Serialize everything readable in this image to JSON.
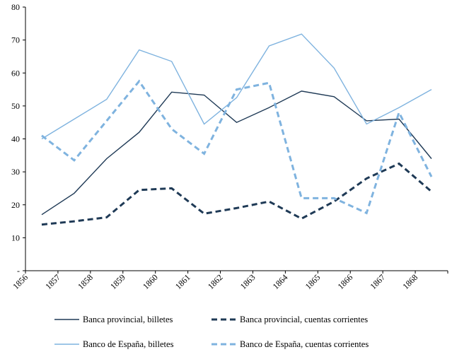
{
  "chart_data": {
    "type": "line",
    "x": [
      "1856",
      "1857",
      "1858",
      "1859",
      "1860",
      "1861",
      "1862",
      "1863",
      "1864",
      "1865",
      "1866",
      "1867",
      "1868"
    ],
    "ylim": [
      0,
      80
    ],
    "yticks": [
      0,
      10,
      20,
      30,
      40,
      50,
      60,
      70,
      80
    ],
    "ytick_labels": [
      "-",
      "10",
      "20",
      "30",
      "40",
      "50",
      "60",
      "70",
      "80"
    ],
    "grid": false,
    "legend_position": "bottom",
    "series": [
      {
        "name": "Banca provincial, billetes",
        "color": "#1f3a56",
        "dash": "solid",
        "values": [
          17,
          23.5,
          34,
          42,
          54.2,
          53.3,
          45,
          49.5,
          54.5,
          52.8,
          45.5,
          46,
          34
        ]
      },
      {
        "name": "Banca provincial, cuentas corrientes",
        "color": "#1f3a56",
        "dash": "dashed",
        "values": [
          14,
          15,
          16.2,
          24.5,
          25,
          17.3,
          19,
          21,
          15.8,
          21,
          28,
          32.5,
          24
        ]
      },
      {
        "name": "Banco de España, billetes",
        "color": "#7fb3df",
        "dash": "solid",
        "values": [
          40,
          46,
          52,
          67,
          63.5,
          44.5,
          52.5,
          68.2,
          71.8,
          61.5,
          44.5,
          49.5,
          55
        ]
      },
      {
        "name": "Banco de España, cuentas corrientes",
        "color": "#7fb3df",
        "dash": "dashed",
        "values": [
          41,
          33.5,
          45.5,
          57.5,
          43,
          35.5,
          55,
          57,
          22,
          22,
          17.5,
          48,
          28.5
        ]
      }
    ]
  }
}
